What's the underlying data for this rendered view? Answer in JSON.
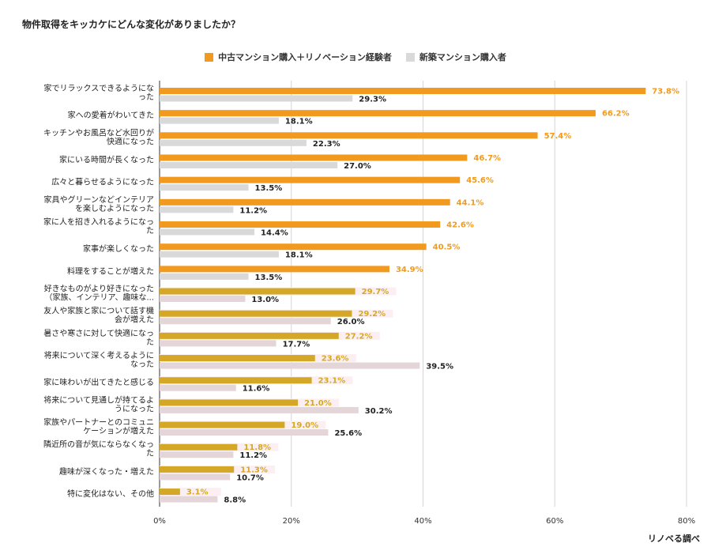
{
  "chart_data": {
    "type": "bar",
    "orientation": "horizontal",
    "title": "物件取得をキッカケにどんな変化がありましたか？",
    "source": "リノベる調べ",
    "xlim": [
      0,
      80
    ],
    "xticks": [
      "0%",
      "20%",
      "40%",
      "60%",
      "80%"
    ],
    "grid": true,
    "legend_position": "top",
    "series": [
      {
        "name": "中古マンション購入＋リノベーション経験者",
        "color": "#F29A1F",
        "highlight_color": "#D4A826",
        "values": [
          73.8,
          66.2,
          57.4,
          46.7,
          45.6,
          44.1,
          42.6,
          40.5,
          34.9,
          29.7,
          29.2,
          27.2,
          23.6,
          23.1,
          21.0,
          19.0,
          11.8,
          11.3,
          3.1
        ]
      },
      {
        "name": "新築マンション購入者",
        "color": "#D9D9D9",
        "highlight_color": "#E3D5D8",
        "values": [
          29.3,
          18.1,
          22.3,
          27.0,
          13.5,
          11.2,
          14.4,
          18.1,
          13.5,
          13.0,
          26.0,
          17.7,
          39.5,
          11.6,
          30.2,
          25.6,
          11.2,
          10.7,
          8.8
        ]
      }
    ],
    "value_labels": [
      [
        "73.8%",
        "66.2%",
        "57.4%",
        "46.7%",
        "45.6%",
        "44.1%",
        "42.6%",
        "40.5%",
        "34.9%",
        "29.7%",
        "29.2%",
        "27.2%",
        "23.6%",
        "23.1%",
        "21.0%",
        "19.0%",
        "11.8%",
        "11.3%",
        "3.1%"
      ],
      [
        "29.3%",
        "18.1%",
        "22.3%",
        "27.0%",
        "13.5%",
        "11.2%",
        "14.4%",
        "18.1%",
        "13.5%",
        "13.0%",
        "26.0%",
        "17.7%",
        "39.5%",
        "11.6%",
        "30.2%",
        "25.6%",
        "11.2%",
        "10.7%",
        "8.8%"
      ]
    ],
    "highlight_from_index": 9,
    "categories": [
      [
        "家でリラックスできるようにな",
        "った"
      ],
      [
        "家への愛着がわいてきた"
      ],
      [
        "キッチンやお風呂など水回りが",
        "快適になった"
      ],
      [
        "家にいる時間が長くなった"
      ],
      [
        "広々と暮らせるようになった"
      ],
      [
        "家具やグリーンなどインテリア",
        "を楽しむようになった"
      ],
      [
        "家に人を招き入れるようになっ",
        "た"
      ],
      [
        "家事が楽しくなった"
      ],
      [
        "料理をすることが増えた"
      ],
      [
        "好きなものがより好きになった",
        "（家族、インテリア、趣味な..."
      ],
      [
        "友人や家族と家について話す機",
        "会が増えた"
      ],
      [
        "暑さや寒さに対して快適になっ",
        "た"
      ],
      [
        "将来について深く考えるように",
        "なった"
      ],
      [
        "家に味わいが出てきたと感じる"
      ],
      [
        "将来について見通しが持てるよ",
        "うになった"
      ],
      [
        "家族やパートナーとのコミュニ",
        "ケーションが増えた"
      ],
      [
        "隣近所の音が気にならなくなっ",
        "た"
      ],
      [
        "趣味が深くなった・増えた"
      ],
      [
        "特に変化はない、その他"
      ]
    ]
  }
}
